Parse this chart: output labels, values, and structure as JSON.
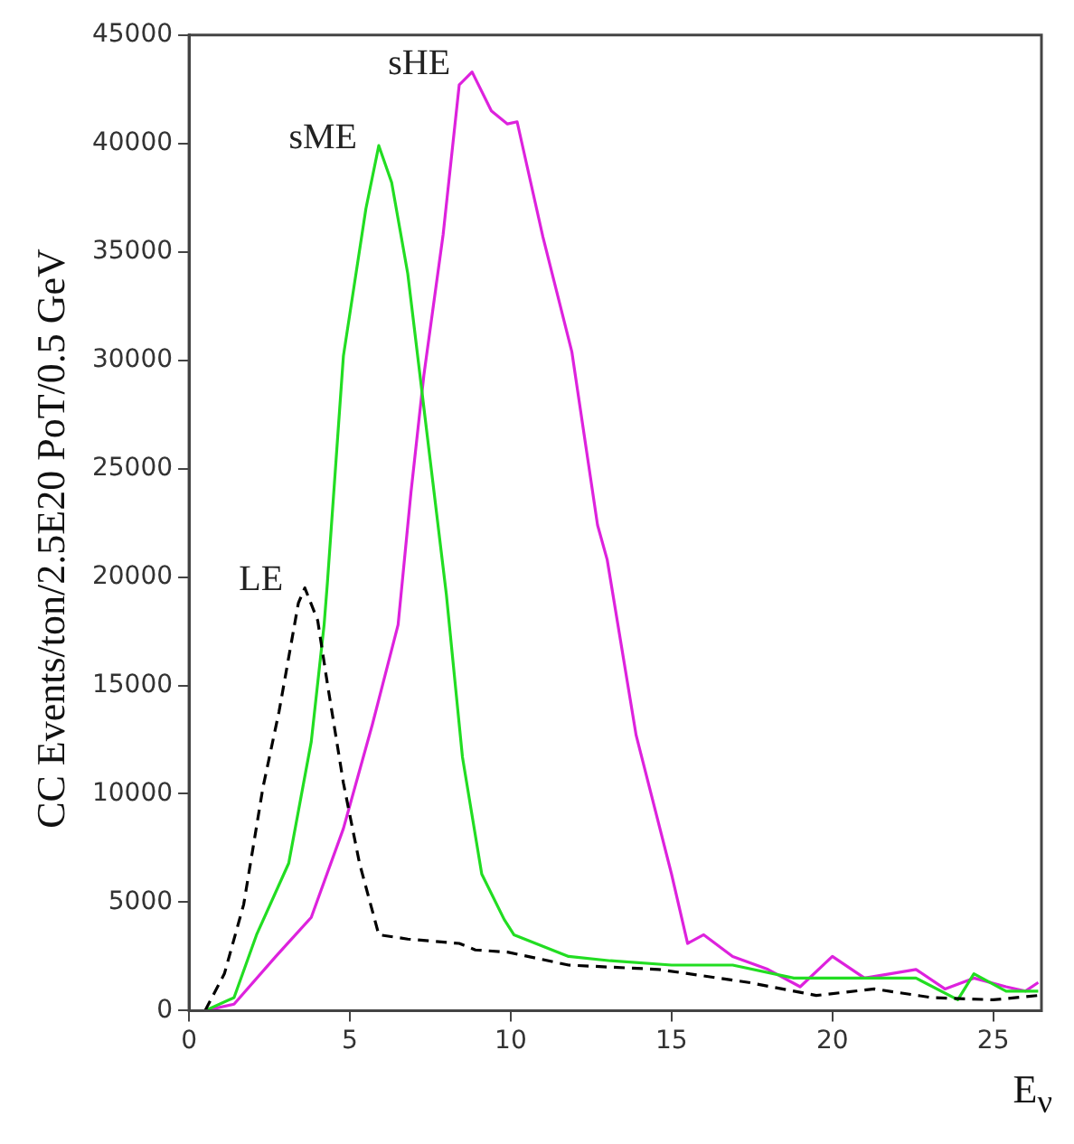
{
  "chart_data": {
    "type": "line",
    "xlabel": "E$_{ν}$",
    "ylabel": "CC Events/ton/2.5E20 PoT/0.5 GeV",
    "xlim": [
      0,
      26.5
    ],
    "xticks": [
      0,
      5,
      10,
      15,
      20,
      25
    ],
    "ylim": [
      0,
      45000
    ],
    "yticks": [
      0,
      5000,
      10000,
      15000,
      20000,
      25000,
      30000,
      35000,
      40000,
      45000
    ],
    "grid": false,
    "legend": false,
    "marker": "none",
    "series": [
      {
        "name": "LE",
        "color": "#000000",
        "line_style": "dashed",
        "x": [
          0.5,
          1.1,
          1.7,
          2.3,
          2.8,
          3.4,
          3.6,
          4.0,
          4.3,
          4.8,
          5.3,
          5.9,
          6.8,
          8.4,
          8.9,
          9.9,
          11.8,
          14.6,
          17.4,
          19.5,
          21.3,
          23.1,
          25,
          26.4
        ],
        "values": [
          0,
          1700,
          4900,
          10300,
          13800,
          18800,
          19500,
          18000,
          15100,
          10500,
          6800,
          3500,
          3300,
          3100,
          2800,
          2700,
          2100,
          1900,
          1300,
          700,
          1000,
          600,
          500,
          700
        ]
      },
      {
        "name": "sME",
        "color": "#22dd22",
        "line_style": "solid",
        "x": [
          0.5,
          1.4,
          2.1,
          3.1,
          3.8,
          4.2,
          4.3,
          4.8,
          5.5,
          5.9,
          6.3,
          6.8,
          7.4,
          8.0,
          8.5,
          9.1,
          9.8,
          10.1,
          11.8,
          13.1,
          15,
          16.9,
          18.8,
          20.7,
          22.6,
          23.9,
          24.4,
          25.4,
          26.4
        ],
        "values": [
          0,
          600,
          3500,
          6800,
          12400,
          17800,
          19700,
          30200,
          37000,
          39900,
          38200,
          34000,
          26600,
          19200,
          11700,
          6300,
          4200,
          3500,
          2500,
          2300,
          2100,
          2100,
          1500,
          1500,
          1500,
          500,
          1700,
          900,
          900
        ]
      },
      {
        "name": "sHE",
        "color": "#dd22dd",
        "line_style": "solid",
        "x": [
          0.5,
          1.4,
          2.7,
          3.8,
          4.8,
          5.7,
          6.5,
          6.9,
          7.3,
          7.9,
          8.4,
          8.8,
          9.4,
          9.9,
          10.2,
          11,
          11.9,
          12.7,
          13,
          13.9,
          15,
          15.5,
          16,
          16.9,
          18,
          19,
          20,
          21,
          22.6,
          23.5,
          24.4,
          25.4,
          26,
          26.4
        ],
        "values": [
          0,
          300,
          2500,
          4300,
          8400,
          13200,
          17800,
          23900,
          29300,
          35800,
          42700,
          43300,
          41500,
          40900,
          41000,
          35700,
          30400,
          22400,
          20800,
          12700,
          6300,
          3100,
          3500,
          2500,
          1900,
          1100,
          2500,
          1500,
          1900,
          1000,
          1500,
          1100,
          900,
          1300
        ]
      }
    ]
  }
}
